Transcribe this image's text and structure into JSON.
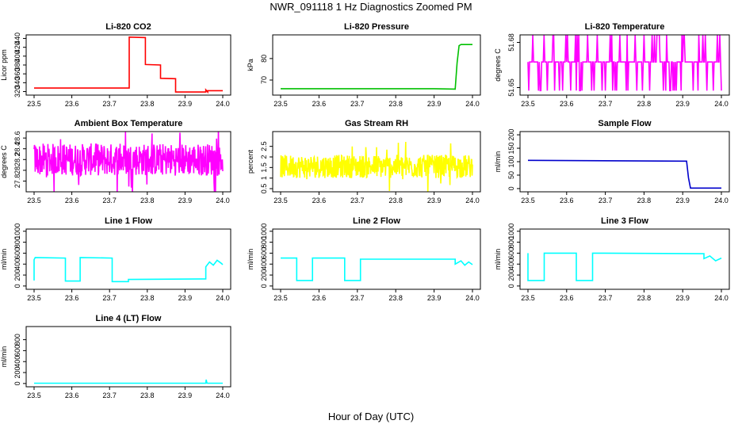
{
  "page": {
    "title": "NWR_091118  1 Hz Diagnostics Zoomed PM",
    "xlabel": "Hour of Day (UTC)"
  },
  "chart_data": [
    {
      "type": "line",
      "title": "Li-820 CO2",
      "ylabel": "Licor ppm",
      "color": "#ff0000",
      "xlim": [
        23.5,
        24.0
      ],
      "ylim": [
        312,
        448
      ],
      "xticks": [
        "23.5",
        "23.6",
        "23.7",
        "23.8",
        "23.9",
        "24.0"
      ],
      "yticks": [
        320,
        340,
        360,
        380,
        400,
        420,
        440
      ],
      "x": [
        23.5,
        23.752,
        23.752,
        23.795,
        23.795,
        23.835,
        23.835,
        23.875,
        23.875,
        23.955,
        23.955,
        23.96,
        23.96,
        24.0
      ],
      "y": [
        328,
        328,
        443,
        442,
        381,
        380,
        350,
        349,
        319,
        319,
        324,
        319,
        322,
        322
      ]
    },
    {
      "type": "line",
      "title": "Li-820 Pressure",
      "ylabel": "kPa",
      "color": "#00c000",
      "xlim": [
        23.5,
        24.0
      ],
      "ylim": [
        63,
        91
      ],
      "xticks": [
        "23.5",
        "23.6",
        "23.7",
        "23.8",
        "23.9",
        "24.0"
      ],
      "yticks": [
        70,
        80
      ],
      "x": [
        23.5,
        23.9,
        23.955,
        23.96,
        23.965,
        23.97,
        24.0
      ],
      "y": [
        66,
        66,
        65.8,
        78,
        86,
        86.5,
        86.5
      ]
    },
    {
      "type": "line",
      "title": "Li-820 Temperature",
      "ylabel": "degrees C",
      "color": "#ff00ff",
      "xlim": [
        23.5,
        24.0
      ],
      "ylim": [
        51.645,
        51.685
      ],
      "xticks": [
        "23.5",
        "23.6",
        "23.7",
        "23.8",
        "23.9",
        "24.0"
      ],
      "yticks": [
        51.65,
        51.68
      ],
      "base": 51.667,
      "high": 51.685,
      "low": 51.648
    },
    {
      "type": "line",
      "title": "Ambient Box Temperature",
      "ylabel": "degrees C",
      "color": "#ff00ff",
      "xlim": [
        23.5,
        24.0
      ],
      "ylim": [
        27.6,
        28.72
      ],
      "xticks": [
        "23.5",
        "23.6",
        "23.7",
        "23.8",
        "23.9",
        "24.0"
      ],
      "yticks": [
        27.8,
        28.0,
        28.2,
        28.4,
        28.6
      ],
      "mean": 28.2,
      "spread": 0.3
    },
    {
      "type": "line",
      "title": "Gas Stream RH",
      "ylabel": "percent",
      "color": "#ffff00",
      "xlim": [
        23.5,
        24.0
      ],
      "ylim": [
        0.35,
        3.2
      ],
      "xticks": [
        "23.5",
        "23.6",
        "23.7",
        "23.8",
        "23.9",
        "24.0"
      ],
      "yticks": [
        0.5,
        1.0,
        1.5,
        2.0,
        2.5
      ],
      "mean": 1.55,
      "spread": 0.55
    },
    {
      "type": "line",
      "title": "Sample Flow",
      "ylabel": "ml/min",
      "color": "#0000cc",
      "xlim": [
        23.5,
        24.0
      ],
      "ylim": [
        -12,
        212
      ],
      "xticks": [
        "23.5",
        "23.6",
        "23.7",
        "23.8",
        "23.9",
        "24.0"
      ],
      "yticks": [
        0,
        50,
        100,
        150,
        200
      ],
      "x": [
        23.5,
        23.9,
        23.91,
        23.915,
        23.92,
        24.0
      ],
      "y": [
        105,
        102,
        102,
        40,
        2,
        2
      ]
    },
    {
      "type": "line",
      "title": "Line 1 Flow",
      "ylabel": "ml/min",
      "color": "#00ffff",
      "xlim": [
        23.5,
        24.0
      ],
      "ylim": [
        -60,
        1040
      ],
      "xticks": [
        "23.5",
        "23.6",
        "23.7",
        "23.8",
        "23.9",
        "24.0"
      ],
      "yticks": [
        0,
        200,
        400,
        600,
        800,
        1000
      ],
      "x": [
        23.5,
        23.5,
        23.503,
        23.583,
        23.583,
        23.622,
        23.622,
        23.707,
        23.707,
        23.75,
        23.75,
        23.955,
        23.955,
        23.965,
        23.975,
        23.985,
        23.995,
        24.0
      ],
      "y": [
        100,
        480,
        520,
        510,
        90,
        90,
        520,
        510,
        80,
        80,
        120,
        130,
        350,
        440,
        380,
        470,
        420,
        390
      ]
    },
    {
      "type": "line",
      "title": "Line 2 Flow",
      "ylabel": "ml/min",
      "color": "#00ffff",
      "xlim": [
        23.5,
        24.0
      ],
      "ylim": [
        -60,
        1040
      ],
      "xticks": [
        "23.5",
        "23.6",
        "23.7",
        "23.8",
        "23.9",
        "24.0"
      ],
      "yticks": [
        0,
        200,
        400,
        600,
        800,
        1000
      ],
      "x": [
        23.5,
        23.542,
        23.542,
        23.583,
        23.583,
        23.667,
        23.667,
        23.708,
        23.708,
        23.955,
        23.955,
        23.97,
        23.98,
        23.99,
        24.0
      ],
      "y": [
        510,
        510,
        100,
        100,
        510,
        510,
        100,
        100,
        490,
        490,
        400,
        460,
        380,
        440,
        390
      ]
    },
    {
      "type": "line",
      "title": "Line 3 Flow",
      "ylabel": "ml/min",
      "color": "#00ffff",
      "xlim": [
        23.5,
        24.0
      ],
      "ylim": [
        -60,
        1040
      ],
      "xticks": [
        "23.5",
        "23.6",
        "23.7",
        "23.8",
        "23.9",
        "24.0"
      ],
      "yticks": [
        0,
        200,
        400,
        600,
        800,
        1000
      ],
      "x": [
        23.5,
        23.5,
        23.503,
        23.542,
        23.542,
        23.625,
        23.625,
        23.667,
        23.667,
        23.955,
        23.955,
        23.97,
        23.985,
        24.0
      ],
      "y": [
        600,
        100,
        100,
        100,
        600,
        600,
        100,
        100,
        600,
        590,
        500,
        550,
        460,
        510
      ]
    },
    {
      "type": "line",
      "title": "Line 4 (LT) Flow",
      "ylabel": "ml/min",
      "color": "#00ffff",
      "xlim": [
        23.5,
        24.0
      ],
      "ylim": [
        -60,
        1040
      ],
      "xticks": [
        "23.5",
        "23.6",
        "23.7",
        "23.8",
        "23.9",
        "24.0"
      ],
      "yticks": [
        0,
        200,
        400,
        600,
        800
      ],
      "x": [
        23.5,
        23.955,
        23.956,
        23.958,
        23.96,
        24.0
      ],
      "y": [
        5,
        5,
        70,
        10,
        5,
        5
      ]
    }
  ]
}
